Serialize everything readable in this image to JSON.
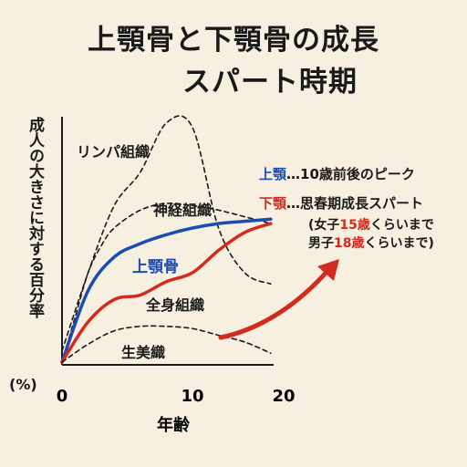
{
  "title": {
    "line1": "上顎骨と下顎骨の成長",
    "line2": "スパート時期"
  },
  "chart_data": {
    "type": "line",
    "ylabel": "成人の大きさに対する百分率",
    "ylabel_unit": "(%)",
    "xlabel": "年齢",
    "x_ticks": [
      "0",
      "10",
      "20"
    ],
    "xlim": [
      0,
      20
    ],
    "series": [
      {
        "name": "リンパ組織",
        "style": "dashed",
        "color": "#1a1a1a",
        "x": [
          0,
          2,
          4,
          6,
          8,
          10,
          12,
          14,
          16
        ],
        "y": [
          5,
          40,
          70,
          85,
          107,
          105,
          60,
          40,
          35
        ]
      },
      {
        "name": "神経組織",
        "style": "dashed",
        "color": "#1a1a1a",
        "x": [
          0,
          1,
          2,
          3,
          4,
          6,
          8,
          10,
          12,
          16
        ],
        "y": [
          0,
          20,
          40,
          52,
          60,
          68,
          71,
          70,
          68,
          62
        ]
      },
      {
        "name": "上顎骨",
        "style": "solid",
        "color": "#1a4db3",
        "x": [
          0,
          2,
          4,
          6,
          8,
          10,
          12,
          14,
          16
        ],
        "y": [
          0,
          32,
          47,
          53,
          57,
          60,
          62,
          63,
          64
        ]
      },
      {
        "name": "全身組織",
        "style": "solid",
        "color": "#d42a1e",
        "x": [
          0,
          2,
          4,
          6,
          8,
          10,
          12,
          14,
          16
        ],
        "y": [
          0,
          18,
          28,
          30,
          36,
          40,
          50,
          58,
          62
        ]
      },
      {
        "name": "生美織",
        "style": "dashed",
        "color": "#1a1a1a",
        "x": [
          0,
          2,
          4,
          6,
          8,
          10,
          12,
          14,
          16
        ],
        "y": [
          0,
          8,
          14,
          16,
          16,
          15,
          12,
          9,
          4
        ]
      }
    ],
    "series_labels": [
      "リンパ組織",
      "神経組織",
      "上顎骨",
      "全身組織",
      "生美織"
    ]
  },
  "legend": {
    "upper": {
      "name": "上顎",
      "text": "…10歳前後のピーク"
    },
    "lower": {
      "name": "下顎",
      "text": "…思春期成長スパート"
    },
    "note_line1": {
      "pre": "(女子",
      "num": "15歳",
      "post": "くらいまで"
    },
    "note_line2": {
      "pre": "男子",
      "num": "18歳",
      "post": "くらいまで)"
    }
  },
  "colors": {
    "upper": "#1a4db3",
    "lower": "#d42a1e",
    "arrow": "#d42a1e",
    "background": "#f7efe0"
  }
}
